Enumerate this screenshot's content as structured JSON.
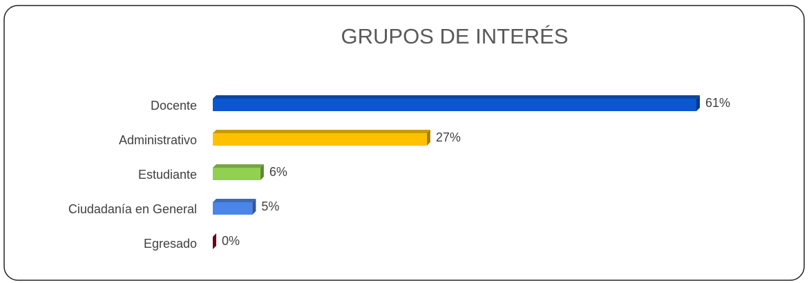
{
  "chart_data": {
    "type": "bar",
    "orientation": "horizontal",
    "title": "GRUPOS DE INTERÉS",
    "categories": [
      "Docente",
      "Administrativo",
      "Estudiante",
      "Ciudadanía en General",
      "Egresado"
    ],
    "values": [
      61,
      27,
      6,
      5,
      0
    ],
    "value_labels": [
      "61%",
      "27%",
      "6%",
      "5%",
      "0%"
    ],
    "colors": [
      "#0b57d0",
      "#ffc000",
      "#92d050",
      "#4a86e8",
      "#a50021"
    ]
  }
}
